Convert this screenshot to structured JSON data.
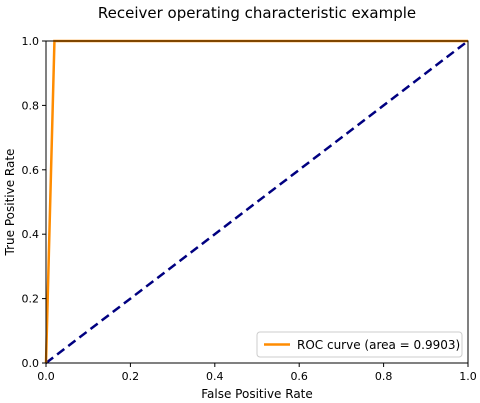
{
  "chart_data": {
    "type": "line",
    "title": "Receiver operating characteristic example",
    "xlabel": "False Positive Rate",
    "ylabel": "True Positive Rate",
    "xlim": [
      0.0,
      1.0
    ],
    "ylim": [
      0.0,
      1.0
    ],
    "xticks": [
      "0.0",
      "0.2",
      "0.4",
      "0.6",
      "0.8",
      "1.0"
    ],
    "yticks": [
      "0.0",
      "0.2",
      "0.4",
      "0.6",
      "0.8",
      "1.0"
    ],
    "grid": false,
    "legend_position": "lower right",
    "series": [
      {
        "name": "ROC curve (area = 0.9903)",
        "color": "#ff8c00",
        "style": "solid",
        "x": [
          0.0,
          0.02,
          1.0
        ],
        "y": [
          0.0,
          1.0,
          1.0
        ]
      },
      {
        "color": "#000080",
        "style": "dashed",
        "x": [
          0.0,
          1.0
        ],
        "y": [
          0.0,
          1.0
        ]
      }
    ]
  }
}
